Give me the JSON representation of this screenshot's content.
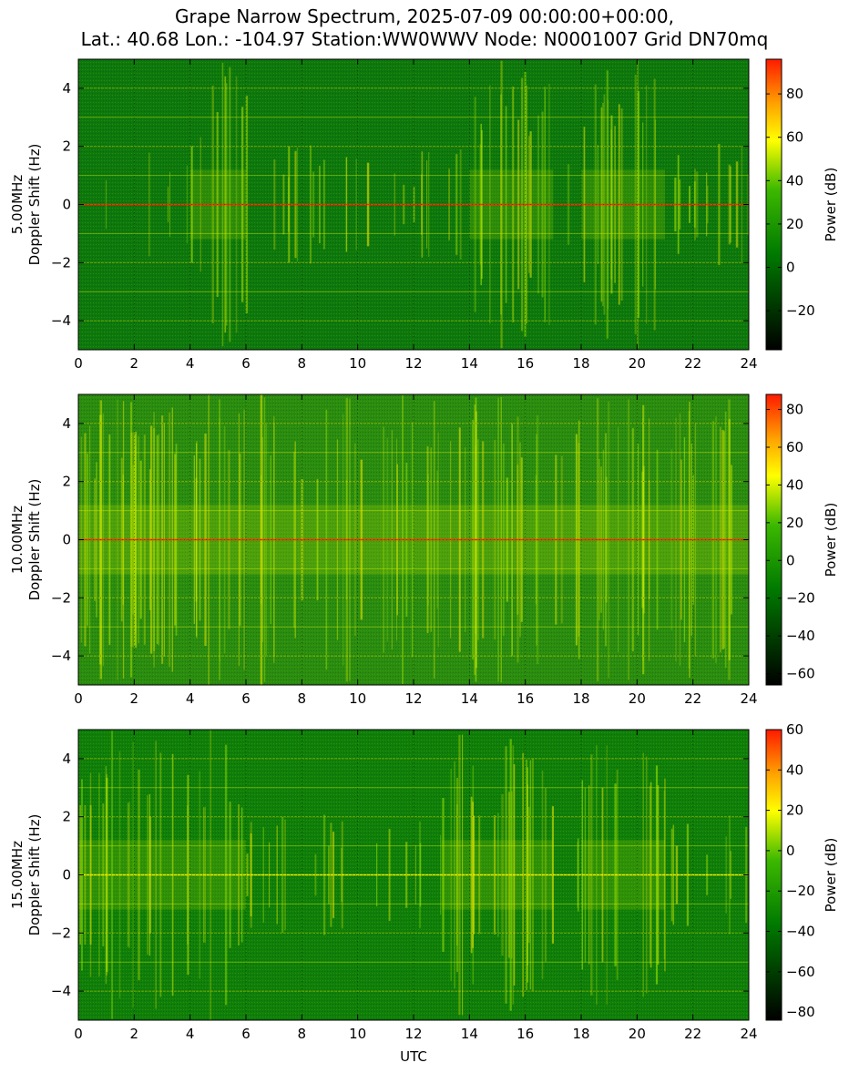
{
  "title_line1": "Grape Narrow Spectrum, 2025-07-09 00:00:00+00:00,",
  "title_line2": "Lat.: 40.68 Lon.: -104.97 Station:WW0WWV Node: N0001007 Grid DN70mq",
  "colors": {
    "background_green": "#0a7a0a",
    "low": "#000000",
    "mid_green": "#00a000",
    "yellow": "#ffff00",
    "high": "#ff2000"
  },
  "chart_data": [
    {
      "type": "heatmap",
      "frequency_label": "5.00MHz",
      "ylabel": "Doppler Shift (Hz)",
      "xlabel": "",
      "xlim": [
        0,
        24
      ],
      "ylim": [
        -5,
        5
      ],
      "x_ticks": [
        0,
        2,
        4,
        6,
        8,
        10,
        12,
        14,
        16,
        18,
        20,
        22,
        24
      ],
      "y_ticks": [
        -4,
        -2,
        0,
        2,
        4
      ],
      "grid": true,
      "colorbar": {
        "label": "Power (dB)",
        "range": [
          -38,
          96
        ],
        "ticks": [
          -20,
          0,
          20,
          40,
          60,
          80
        ]
      },
      "carrier_hz": 0,
      "carrier_peak_db": 90,
      "active_periods_utc": [
        [
          4,
          6
        ],
        [
          14,
          17
        ],
        [
          18,
          21
        ]
      ]
    },
    {
      "type": "heatmap",
      "frequency_label": "10.00MHz",
      "ylabel": "Doppler Shift (Hz)",
      "xlabel": "",
      "xlim": [
        0,
        24
      ],
      "ylim": [
        -5,
        5
      ],
      "x_ticks": [
        0,
        2,
        4,
        6,
        8,
        10,
        12,
        14,
        16,
        18,
        20,
        22,
        24
      ],
      "y_ticks": [
        -4,
        -2,
        0,
        2,
        4
      ],
      "grid": true,
      "colorbar": {
        "label": "Power (dB)",
        "range": [
          -66,
          88
        ],
        "ticks": [
          -60,
          -40,
          -20,
          0,
          20,
          40,
          60,
          80
        ]
      },
      "carrier_hz": 0,
      "carrier_peak_db": 85,
      "active_periods_utc": [
        [
          0,
          24
        ]
      ]
    },
    {
      "type": "heatmap",
      "frequency_label": "15.00MHz",
      "ylabel": "Doppler Shift (Hz)",
      "xlabel": "UTC",
      "xlim": [
        0,
        24
      ],
      "ylim": [
        -5,
        5
      ],
      "x_ticks": [
        0,
        2,
        4,
        6,
        8,
        10,
        12,
        14,
        16,
        18,
        20,
        22,
        24
      ],
      "y_ticks": [
        -4,
        -2,
        0,
        2,
        4
      ],
      "grid": true,
      "colorbar": {
        "label": "Power (dB)",
        "range": [
          -84,
          60
        ],
        "ticks": [
          -80,
          -60,
          -40,
          -20,
          0,
          20,
          40,
          60
        ]
      },
      "carrier_hz": 0,
      "carrier_peak_db": 30,
      "active_periods_utc": [
        [
          0,
          6
        ],
        [
          13,
          17
        ],
        [
          18,
          21
        ]
      ]
    }
  ]
}
